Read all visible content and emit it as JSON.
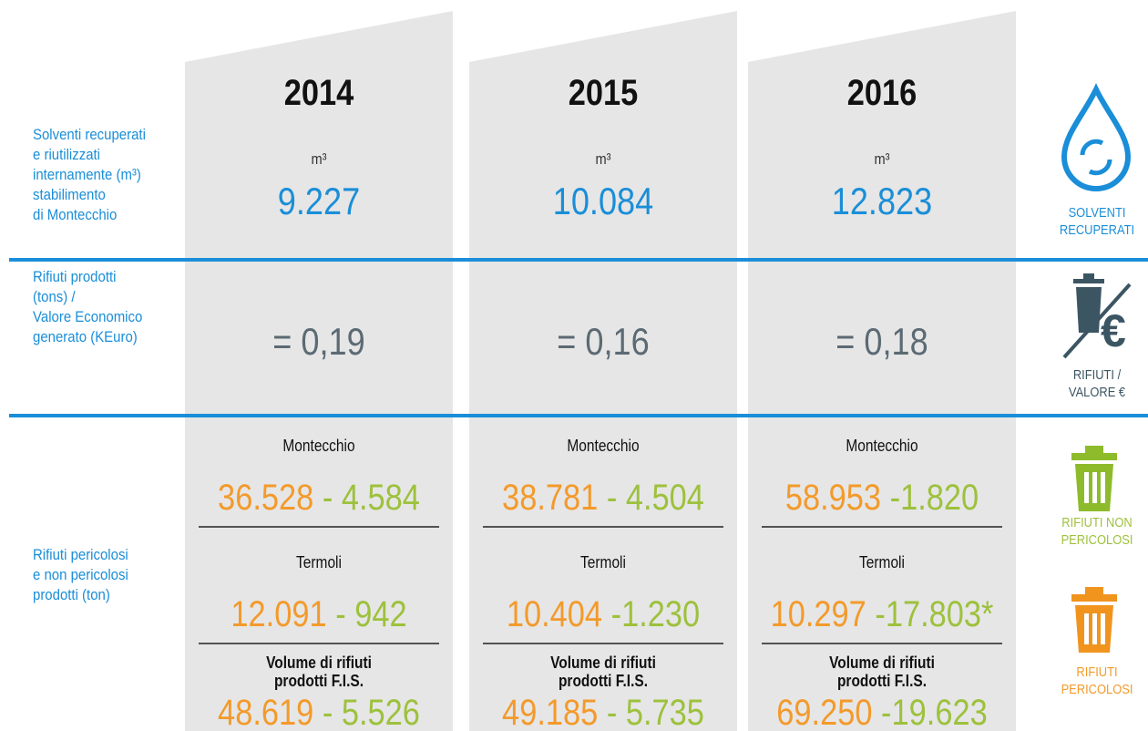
{
  "columns": [
    "2014",
    "2015",
    "2016"
  ],
  "solvents": {
    "label": [
      "Solventi recuperati",
      "e riutilizzati",
      "internamente (m³)",
      "stabilimento",
      "di Montecchio"
    ],
    "unit": "m³",
    "values": [
      "9.227",
      "10.084",
      "12.823"
    ],
    "icon_label": [
      "SOLVENTI",
      "RECUPERATI"
    ]
  },
  "waste_ratio": {
    "label": [
      "Rifiuti prodotti",
      "(tons) /",
      "Valore Economico",
      "generato (KEuro)"
    ],
    "values": [
      "= 0,19",
      "= 0,16",
      "= 0,18"
    ],
    "icon_label": [
      "RIFIUTI /",
      "VALORE €"
    ]
  },
  "waste": {
    "label": [
      "Rifiuti pericolosi",
      "e non pericolosi",
      "prodotti (ton)"
    ],
    "sites": [
      {
        "name": [
          "Montecchio"
        ],
        "values": [
          [
            "36.528",
            "- 4.584"
          ],
          [
            "38.781",
            "- 4.504"
          ],
          [
            "58.953",
            "-1.820"
          ]
        ]
      },
      {
        "name": [
          "Termoli"
        ],
        "values": [
          [
            "12.091",
            "- 942"
          ],
          [
            "10.404",
            "-1.230"
          ],
          [
            "10.297",
            "-17.803*"
          ]
        ]
      },
      {
        "name": [
          "Volume di rifiuti",
          "prodotti F.I.S."
        ],
        "values": [
          [
            "48.619",
            "- 5.526"
          ],
          [
            "49.185",
            "- 5.735"
          ],
          [
            "69.250",
            "-19.623"
          ]
        ]
      }
    ],
    "icon_labels": {
      "non_hazardous": [
        "RIFIUTI NON",
        "PERICOLOSI"
      ],
      "hazardous": [
        "RIFIUTI",
        "PERICOLOSI"
      ]
    }
  }
}
